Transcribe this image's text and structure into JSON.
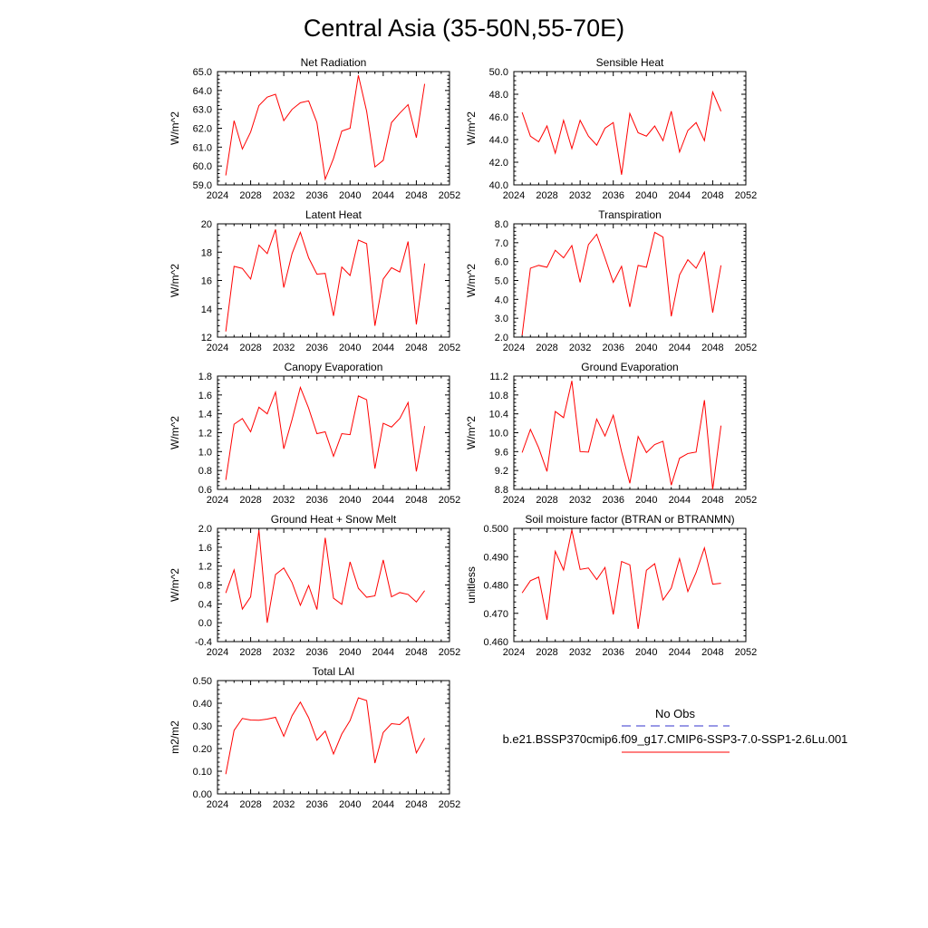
{
  "title": "Central Asia (35-50N,55-70E)",
  "colors": {
    "model": "#ff0000",
    "obs": "#3333cc",
    "axis": "#000000"
  },
  "legend": {
    "obs_label": "No Obs",
    "model_label": "b.e21.BSSP370cmip6.f09_g17.CMIP6-SSP3-7.0-SSP1-2.6Lu.001"
  },
  "chart_data": [
    {
      "type": "line",
      "title": "Net Radiation",
      "ylabel": "W/m^2",
      "xlim": [
        2024,
        2052
      ],
      "ylim": [
        59.0,
        65.0
      ],
      "xticks": [
        2024,
        2028,
        2032,
        2036,
        2040,
        2044,
        2048,
        2052
      ],
      "xtick_labels": [
        "2024",
        "2028",
        "2032",
        "2036",
        "2040",
        "2044",
        "2048",
        "2052"
      ],
      "yticks": [
        59,
        60,
        61,
        62,
        63,
        64,
        65
      ],
      "ytick_labels": [
        "59.0",
        "60.0",
        "61.0",
        "62.0",
        "63.0",
        "64.0",
        "65.0"
      ],
      "grid": false,
      "series": [
        {
          "x": [
            2025,
            2026,
            2027,
            2028,
            2029,
            2030,
            2031,
            2032,
            2033,
            2034,
            2035,
            2036,
            2037,
            2038,
            2039,
            2040,
            2041,
            2042,
            2043,
            2044,
            2045,
            2046,
            2047,
            2048,
            2049
          ],
          "y": [
            59.5,
            62.4,
            60.9,
            61.8,
            63.2,
            63.65,
            63.8,
            62.4,
            63.0,
            63.35,
            63.45,
            62.3,
            59.3,
            60.4,
            61.85,
            62.0,
            64.8,
            62.9,
            59.95,
            60.3,
            62.3,
            62.8,
            63.25,
            61.5,
            64.35
          ]
        }
      ]
    },
    {
      "type": "line",
      "title": "Sensible Heat",
      "ylabel": "W/m^2",
      "xlim": [
        2024,
        2052
      ],
      "ylim": [
        40.0,
        50.0
      ],
      "xticks": [
        2024,
        2028,
        2032,
        2036,
        2040,
        2044,
        2048,
        2052
      ],
      "xtick_labels": [
        "2024",
        "2028",
        "2032",
        "2036",
        "2040",
        "2044",
        "2048",
        "2052"
      ],
      "yticks": [
        40,
        42,
        44,
        46,
        48,
        50
      ],
      "ytick_labels": [
        "40.0",
        "42.0",
        "44.0",
        "46.0",
        "48.0",
        "50.0"
      ],
      "grid": false,
      "series": [
        {
          "x": [
            2025,
            2026,
            2027,
            2028,
            2029,
            2030,
            2031,
            2032,
            2033,
            2034,
            2035,
            2036,
            2037,
            2038,
            2039,
            2040,
            2041,
            2042,
            2043,
            2044,
            2045,
            2046,
            2047,
            2048,
            2049
          ],
          "y": [
            46.4,
            44.3,
            43.8,
            45.2,
            42.8,
            45.7,
            43.2,
            45.7,
            44.3,
            43.5,
            45.0,
            45.5,
            40.9,
            46.3,
            44.6,
            44.3,
            45.2,
            43.9,
            46.5,
            42.9,
            44.8,
            45.5,
            43.9,
            48.2,
            46.5
          ]
        }
      ]
    },
    {
      "type": "line",
      "title": "Latent Heat",
      "ylabel": "W/m^2",
      "xlim": [
        2024,
        2052
      ],
      "ylim": [
        12,
        20
      ],
      "xticks": [
        2024,
        2028,
        2032,
        2036,
        2040,
        2044,
        2048,
        2052
      ],
      "xtick_labels": [
        "2024",
        "2028",
        "2032",
        "2036",
        "2040",
        "2044",
        "2048",
        "2052"
      ],
      "yticks": [
        12,
        14,
        16,
        18,
        20
      ],
      "ytick_labels": [
        "12",
        "14",
        "16",
        "18",
        "20"
      ],
      "grid": false,
      "series": [
        {
          "x": [
            2025,
            2026,
            2027,
            2028,
            2029,
            2030,
            2031,
            2032,
            2033,
            2034,
            2035,
            2036,
            2037,
            2038,
            2039,
            2040,
            2041,
            2042,
            2043,
            2044,
            2045,
            2046,
            2047,
            2048,
            2049
          ],
          "y": [
            12.4,
            17.0,
            16.85,
            16.1,
            18.5,
            17.9,
            19.6,
            15.5,
            17.9,
            19.4,
            17.6,
            16.45,
            16.5,
            13.5,
            16.95,
            16.35,
            18.85,
            18.6,
            12.8,
            16.1,
            16.9,
            16.6,
            18.75,
            12.9,
            17.2
          ]
        }
      ]
    },
    {
      "type": "line",
      "title": "Transpiration",
      "ylabel": "W/m^2",
      "xlim": [
        2024,
        2052
      ],
      "ylim": [
        2.0,
        8.0
      ],
      "xticks": [
        2024,
        2028,
        2032,
        2036,
        2040,
        2044,
        2048,
        2052
      ],
      "xtick_labels": [
        "2024",
        "2028",
        "2032",
        "2036",
        "2040",
        "2044",
        "2048",
        "2052"
      ],
      "yticks": [
        2,
        3,
        4,
        5,
        6,
        7,
        8
      ],
      "ytick_labels": [
        "2.0",
        "3.0",
        "4.0",
        "5.0",
        "6.0",
        "7.0",
        "8.0"
      ],
      "grid": false,
      "series": [
        {
          "x": [
            2025,
            2026,
            2027,
            2028,
            2029,
            2030,
            2031,
            2032,
            2033,
            2034,
            2035,
            2036,
            2037,
            2038,
            2039,
            2040,
            2041,
            2042,
            2043,
            2044,
            2045,
            2046,
            2047,
            2048,
            2049
          ],
          "y": [
            2.1,
            5.65,
            5.8,
            5.7,
            6.6,
            6.2,
            6.85,
            4.9,
            6.9,
            7.45,
            6.2,
            4.9,
            5.75,
            3.6,
            5.8,
            5.7,
            7.55,
            7.3,
            3.1,
            5.3,
            6.1,
            5.65,
            6.5,
            3.3,
            5.8
          ]
        }
      ]
    },
    {
      "type": "line",
      "title": "Canopy Evaporation",
      "ylabel": "W/m^2",
      "xlim": [
        2024,
        2052
      ],
      "ylim": [
        0.6,
        1.8
      ],
      "xticks": [
        2024,
        2028,
        2032,
        2036,
        2040,
        2044,
        2048,
        2052
      ],
      "xtick_labels": [
        "2024",
        "2028",
        "2032",
        "2036",
        "2040",
        "2044",
        "2048",
        "2052"
      ],
      "yticks": [
        0.6,
        0.8,
        1.0,
        1.2,
        1.4,
        1.6,
        1.8
      ],
      "ytick_labels": [
        "0.6",
        "0.8",
        "1.0",
        "1.2",
        "1.4",
        "1.6",
        "1.8"
      ],
      "grid": false,
      "series": [
        {
          "x": [
            2025,
            2026,
            2027,
            2028,
            2029,
            2030,
            2031,
            2032,
            2033,
            2034,
            2035,
            2036,
            2037,
            2038,
            2039,
            2040,
            2041,
            2042,
            2043,
            2044,
            2045,
            2046,
            2047,
            2048,
            2049
          ],
          "y": [
            0.7,
            1.29,
            1.35,
            1.21,
            1.47,
            1.4,
            1.63,
            1.03,
            1.34,
            1.68,
            1.46,
            1.19,
            1.21,
            0.95,
            1.19,
            1.18,
            1.59,
            1.55,
            0.82,
            1.3,
            1.26,
            1.35,
            1.52,
            0.79,
            1.27
          ]
        }
      ]
    },
    {
      "type": "line",
      "title": "Ground Evaporation",
      "ylabel": "W/m^2",
      "xlim": [
        2024,
        2052
      ],
      "ylim": [
        8.8,
        11.2
      ],
      "xticks": [
        2024,
        2028,
        2032,
        2036,
        2040,
        2044,
        2048,
        2052
      ],
      "xtick_labels": [
        "2024",
        "2028",
        "2032",
        "2036",
        "2040",
        "2044",
        "2048",
        "2052"
      ],
      "yticks": [
        8.8,
        9.2,
        9.6,
        10.0,
        10.4,
        10.8,
        11.2
      ],
      "ytick_labels": [
        "8.8",
        "9.2",
        "9.6",
        "10.0",
        "10.4",
        "10.8",
        "11.2"
      ],
      "grid": false,
      "series": [
        {
          "x": [
            2025,
            2026,
            2027,
            2028,
            2029,
            2030,
            2031,
            2032,
            2033,
            2034,
            2035,
            2036,
            2037,
            2038,
            2039,
            2040,
            2041,
            2042,
            2043,
            2044,
            2045,
            2046,
            2047,
            2048,
            2049
          ],
          "y": [
            9.58,
            10.07,
            9.68,
            9.18,
            10.45,
            10.32,
            11.1,
            9.6,
            9.59,
            10.29,
            9.93,
            10.37,
            9.6,
            8.93,
            9.92,
            9.58,
            9.75,
            9.82,
            8.89,
            9.46,
            9.56,
            9.59,
            10.69,
            8.8,
            10.15
          ]
        }
      ]
    },
    {
      "type": "line",
      "title": "Ground Heat + Snow Melt",
      "ylabel": "W/m^2",
      "xlim": [
        2024,
        2052
      ],
      "ylim": [
        -0.4,
        2.0
      ],
      "xticks": [
        2024,
        2028,
        2032,
        2036,
        2040,
        2044,
        2048,
        2052
      ],
      "xtick_labels": [
        "2024",
        "2028",
        "2032",
        "2036",
        "2040",
        "2044",
        "2048",
        "2052"
      ],
      "yticks": [
        -0.4,
        0.0,
        0.4,
        0.8,
        1.2,
        1.6,
        2.0
      ],
      "ytick_labels": [
        "-0.4",
        "0.0",
        "0.4",
        "0.8",
        "1.2",
        "1.6",
        "2.0"
      ],
      "grid": false,
      "series": [
        {
          "x": [
            2025,
            2026,
            2027,
            2028,
            2029,
            2030,
            2031,
            2032,
            2033,
            2034,
            2035,
            2036,
            2037,
            2038,
            2039,
            2040,
            2041,
            2042,
            2043,
            2044,
            2045,
            2046,
            2047,
            2048,
            2049
          ],
          "y": [
            0.63,
            1.12,
            0.29,
            0.55,
            1.96,
            0.0,
            1.02,
            1.16,
            0.85,
            0.37,
            0.79,
            0.28,
            1.8,
            0.52,
            0.39,
            1.29,
            0.73,
            0.54,
            0.57,
            1.33,
            0.55,
            0.64,
            0.6,
            0.44,
            0.68
          ]
        }
      ]
    },
    {
      "type": "line",
      "title": "Soil moisture factor (BTRAN or BTRANMN)",
      "ylabel": "unitless",
      "xlim": [
        2024,
        2052
      ],
      "ylim": [
        0.46,
        0.5
      ],
      "xticks": [
        2024,
        2028,
        2032,
        2036,
        2040,
        2044,
        2048,
        2052
      ],
      "xtick_labels": [
        "2024",
        "2028",
        "2032",
        "2036",
        "2040",
        "2044",
        "2048",
        "2052"
      ],
      "yticks": [
        0.46,
        0.47,
        0.48,
        0.49,
        0.5
      ],
      "ytick_labels": [
        "0.460",
        "0.470",
        "0.480",
        "0.490",
        "0.500"
      ],
      "grid": false,
      "series": [
        {
          "x": [
            2025,
            2026,
            2027,
            2028,
            2029,
            2030,
            2031,
            2032,
            2033,
            2034,
            2035,
            2036,
            2037,
            2038,
            2039,
            2040,
            2041,
            2042,
            2043,
            2044,
            2045,
            2046,
            2047,
            2048,
            2049
          ],
          "y": [
            0.4772,
            0.4815,
            0.4828,
            0.4677,
            0.4919,
            0.4853,
            0.4994,
            0.4855,
            0.486,
            0.4819,
            0.4862,
            0.4696,
            0.4883,
            0.4871,
            0.4645,
            0.4852,
            0.4875,
            0.4747,
            0.4789,
            0.4893,
            0.4777,
            0.4844,
            0.4931,
            0.4803,
            0.4806
          ]
        }
      ]
    },
    {
      "type": "line",
      "title": "Total LAI",
      "ylabel": "m2/m2",
      "xlim": [
        2024,
        2052
      ],
      "ylim": [
        0.0,
        0.5
      ],
      "xticks": [
        2024,
        2028,
        2032,
        2036,
        2040,
        2044,
        2048,
        2052
      ],
      "xtick_labels": [
        "2024",
        "2028",
        "2032",
        "2036",
        "2040",
        "2044",
        "2048",
        "2052"
      ],
      "yticks": [
        0.0,
        0.1,
        0.2,
        0.3,
        0.4,
        0.5
      ],
      "ytick_labels": [
        "0.00",
        "0.10",
        "0.20",
        "0.30",
        "0.40",
        "0.50"
      ],
      "grid": false,
      "series": [
        {
          "x": [
            2025,
            2026,
            2027,
            2028,
            2029,
            2030,
            2031,
            2032,
            2033,
            2034,
            2035,
            2036,
            2037,
            2038,
            2039,
            2040,
            2041,
            2042,
            2043,
            2044,
            2045,
            2046,
            2047,
            2048,
            2049
          ],
          "y": [
            0.087,
            0.28,
            0.333,
            0.326,
            0.325,
            0.33,
            0.338,
            0.254,
            0.345,
            0.405,
            0.336,
            0.237,
            0.277,
            0.176,
            0.264,
            0.324,
            0.424,
            0.412,
            0.136,
            0.271,
            0.31,
            0.306,
            0.34,
            0.181,
            0.246
          ]
        }
      ]
    }
  ]
}
